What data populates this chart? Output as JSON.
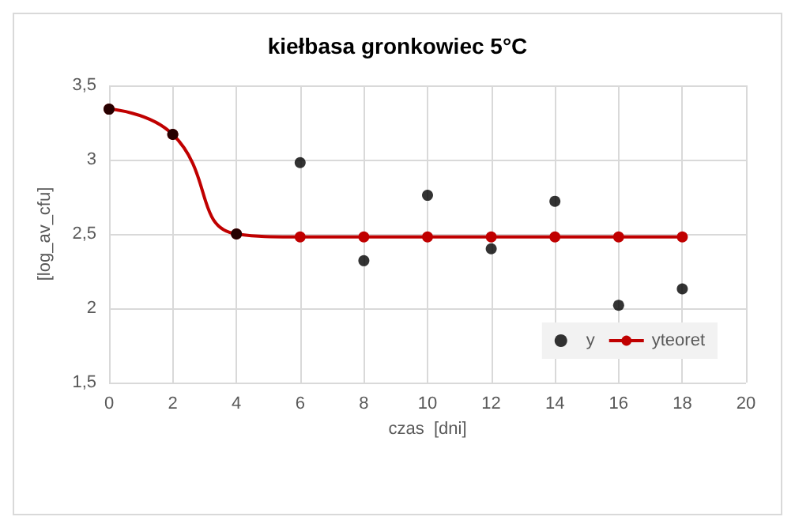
{
  "chart_data": {
    "type": "scatter",
    "title": "kiełbasa gronkowiec 5°C",
    "xlabel": "czas  [dni]",
    "ylabel": "[log_av_cfu]",
    "x": [
      0,
      2,
      4,
      6,
      8,
      10,
      12,
      14,
      16,
      18
    ],
    "series": [
      {
        "name": "y",
        "color": "#000000",
        "marker": "circle",
        "values": [
          3.34,
          3.17,
          2.5,
          2.98,
          2.32,
          2.76,
          2.4,
          2.72,
          2.02,
          2.13
        ]
      },
      {
        "name": "yteoret",
        "type": "line",
        "color": "#c00000",
        "marker": "circle",
        "values": [
          3.34,
          3.17,
          2.5,
          2.48,
          2.48,
          2.48,
          2.48,
          2.48,
          2.48,
          2.48
        ]
      }
    ],
    "xlim": [
      0,
      20
    ],
    "xticks": [
      0,
      2,
      4,
      6,
      8,
      10,
      12,
      14,
      16,
      18,
      20
    ],
    "ylim": [
      1.5,
      3.5
    ],
    "yticks": [
      {
        "value": 1.5,
        "label": "1,5"
      },
      2,
      {
        "value": 2.5,
        "label": "2,5"
      },
      3,
      {
        "value": 3.5,
        "label": "3,5"
      }
    ],
    "grid": true,
    "legend": "bottom right"
  }
}
